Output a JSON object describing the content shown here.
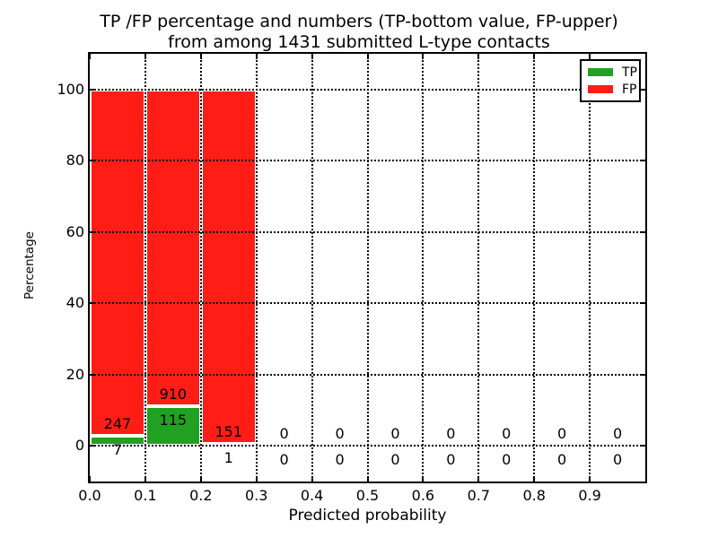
{
  "title": {
    "line1": "TP /FP percentage and numbers (TP-bottom value, FP-upper)",
    "line2": "from among 1431 submitted L-type contacts"
  },
  "chart_data": {
    "type": "bar",
    "stacked": true,
    "title": "TP /FP percentage and numbers (TP-bottom value, FP-upper) from among 1431 submitted L-type contacts",
    "xlabel": "Predicted probability",
    "ylabel": "Percentage",
    "xlim": [
      0.0,
      1.0
    ],
    "ylim": [
      -10,
      110
    ],
    "grid": true,
    "grid_style": "dotted",
    "xticks": {
      "values": [
        0.0,
        0.1,
        0.2,
        0.3,
        0.4,
        0.5,
        0.6,
        0.7,
        0.8,
        0.9
      ],
      "labels": [
        "0.0",
        "0.1",
        "0.2",
        "0.3",
        "0.4",
        "0.5",
        "0.6",
        "0.7",
        "0.8",
        "0.9"
      ]
    },
    "yticks": {
      "values": [
        0,
        20,
        40,
        60,
        80,
        100
      ],
      "labels": [
        "0",
        "20",
        "40",
        "60",
        "80",
        "100"
      ]
    },
    "series": [
      {
        "name": "TP",
        "color": "#21a121"
      },
      {
        "name": "FP",
        "color": "#ff1d16"
      }
    ],
    "legend": {
      "position": "upper right",
      "entries": [
        "TP",
        "FP"
      ]
    },
    "bins": [
      {
        "x0": 0.0,
        "x1": 0.1,
        "tp": 7,
        "fp": 247
      },
      {
        "x0": 0.1,
        "x1": 0.2,
        "tp": 115,
        "fp": 910
      },
      {
        "x0": 0.2,
        "x1": 0.3,
        "tp": 1,
        "fp": 151
      },
      {
        "x0": 0.3,
        "x1": 0.4,
        "tp": 0,
        "fp": 0
      },
      {
        "x0": 0.4,
        "x1": 0.5,
        "tp": 0,
        "fp": 0
      },
      {
        "x0": 0.5,
        "x1": 0.6,
        "tp": 0,
        "fp": 0
      },
      {
        "x0": 0.6,
        "x1": 0.7,
        "tp": 0,
        "fp": 0
      },
      {
        "x0": 0.7,
        "x1": 0.8,
        "tp": 0,
        "fp": 0
      },
      {
        "x0": 0.8,
        "x1": 0.9,
        "tp": 0,
        "fp": 0
      },
      {
        "x0": 0.9,
        "x1": 1.0,
        "tp": 0,
        "fp": 0
      }
    ]
  }
}
